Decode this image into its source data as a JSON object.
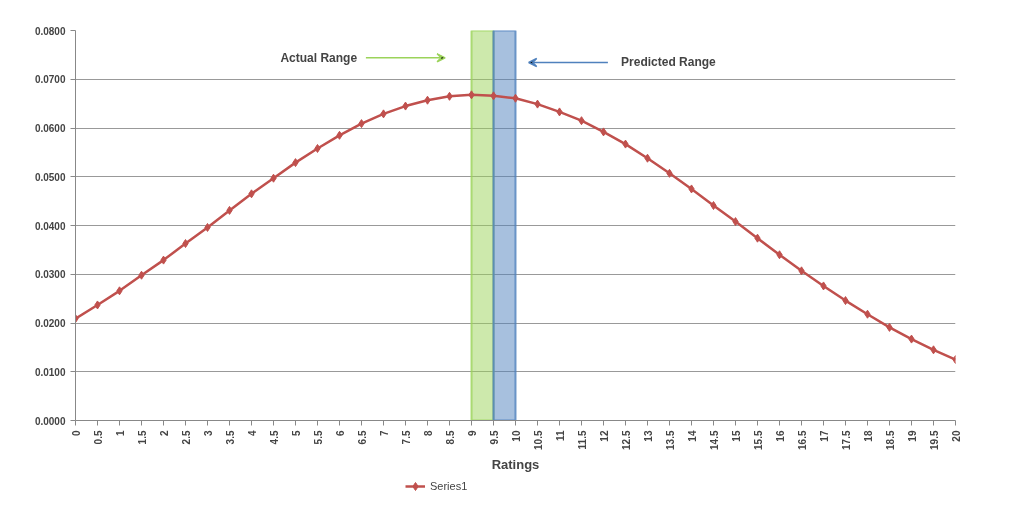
{
  "chart_data": {
    "type": "line",
    "xlabel": "Ratings",
    "categories": [
      "0",
      "0.5",
      "1",
      "1.5",
      "2",
      "2.5",
      "3",
      "3.5",
      "4",
      "4.5",
      "5",
      "5.5",
      "6",
      "6.5",
      "7",
      "7.5",
      "8",
      "8.5",
      "9",
      "9.5",
      "10",
      "10.5",
      "11",
      "11.5",
      "12",
      "12.5",
      "13",
      "13.5",
      "14",
      "14.5",
      "15",
      "15.5",
      "16",
      "16.5",
      "17",
      "17.5",
      "18",
      "18.5",
      "19",
      "19.5",
      "20"
    ],
    "series": [
      {
        "name": "Series1",
        "color": "#c0504d",
        "values": [
          0.0209,
          0.0237,
          0.0266,
          0.0298,
          0.0329,
          0.0363,
          0.0396,
          0.0431,
          0.0465,
          0.0497,
          0.0529,
          0.0558,
          0.0585,
          0.0609,
          0.0629,
          0.0645,
          0.0657,
          0.0665,
          0.0668,
          0.0666,
          0.0661,
          0.0649,
          0.0633,
          0.0615,
          0.0592,
          0.0567,
          0.0538,
          0.0507,
          0.0475,
          0.0441,
          0.0408,
          0.0374,
          0.034,
          0.0307,
          0.0276,
          0.0246,
          0.0218,
          0.0191,
          0.0167,
          0.0145,
          0.0125
        ]
      }
    ],
    "ylim": [
      0,
      0.08
    ],
    "yticks": [
      {
        "value": 0,
        "label": "0.0000"
      },
      {
        "value": 0.01,
        "label": "0.0100"
      },
      {
        "value": 0.02,
        "label": "0.0200"
      },
      {
        "value": 0.03,
        "label": "0.0300"
      },
      {
        "value": 0.04,
        "label": "0.0400"
      },
      {
        "value": 0.05,
        "label": "0.0500"
      },
      {
        "value": 0.06,
        "label": "0.0600"
      },
      {
        "value": 0.07,
        "label": "0.0700"
      },
      {
        "value": 0.08,
        "label": "0.0800"
      }
    ],
    "annotations": [
      "Actual Range",
      "Predicted Range"
    ],
    "bands": [
      {
        "axis": "x",
        "from": "9",
        "to": "9.5",
        "color": "#9bd35a"
      },
      {
        "axis": "x",
        "from": "9.5",
        "to": "10",
        "color": "#4f81bd"
      }
    ],
    "grid": "y",
    "legend": "bottom",
    "marker": "diamond",
    "line_style": "solid"
  }
}
